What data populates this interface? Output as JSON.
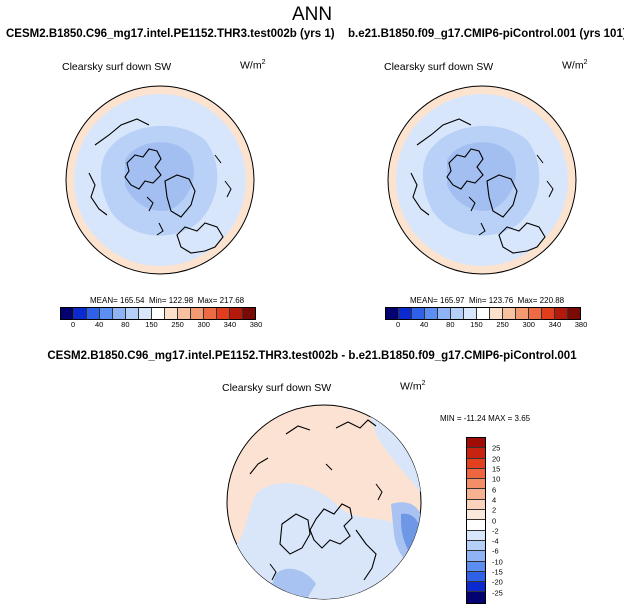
{
  "figure": {
    "title": "ANN",
    "panel_left": {
      "case": "CESM2.B1850.C96_mg17.intel.PE1152.THR3.test002b (yrs 1)",
      "variable": "Clearsky surf down SW",
      "unit_base": "W/m",
      "unit_exp": "2",
      "mean_text": "MEAN= 165.54",
      "min_text": "Min= 122.98",
      "max_text": "Max= 217.68"
    },
    "panel_right": {
      "case": "b.e21.B1850.f09_g17.CMIP6-piControl.001 (yrs 101)",
      "variable": "Clearsky surf down SW",
      "unit_base": "W/m",
      "unit_exp": "2",
      "mean_text": "MEAN= 165.97",
      "min_text": "Min= 123.76",
      "max_text": "Max= 220.88"
    },
    "panel_diff": {
      "case": "CESM2.B1850.C96_mg17.intel.PE1152.THR3.test002b - b.e21.B1850.f09_g17.CMIP6-piControl.001",
      "variable": "Clearsky surf down SW",
      "unit_base": "W/m",
      "unit_exp": "2",
      "minmax_text": "MIN = -11.24 MAX =   3.65"
    }
  },
  "colorbar_main": {
    "ticks": [
      "0",
      "40",
      "80",
      "150",
      "250",
      "300",
      "340",
      "380"
    ],
    "colors": [
      "#040270",
      "#0a2ad0",
      "#2e60e8",
      "#5b8ef0",
      "#8fb4f5",
      "#b4cff8",
      "#d8e6fb",
      "#ffffff",
      "#fbe0cc",
      "#f8c2a0",
      "#f49a72",
      "#ee6a44",
      "#e23c1e",
      "#b41a0c",
      "#7a0a04"
    ]
  },
  "colorbar_diff": {
    "ticks": [
      "25",
      "20",
      "15",
      "10",
      "6",
      "4",
      "2",
      "0",
      "-2",
      "-4",
      "-6",
      "-10",
      "-15",
      "-20",
      "-25"
    ],
    "colors": [
      "#a00c06",
      "#c82210",
      "#e2401e",
      "#ee6640",
      "#f48e68",
      "#f8b292",
      "#fbd2bc",
      "#fbe8dc",
      "#ffffff",
      "#d8e6fb",
      "#b4cff8",
      "#8fb4f5",
      "#5b8ef0",
      "#2e60e8",
      "#0a2ad0",
      "#040270"
    ]
  },
  "map_colors": {
    "outer_ring": "#fbe3d0",
    "field_light": "#d8e6fb",
    "field_mid": "#b9d1f6",
    "field_dark": "#a3bff1",
    "diff_pos": "#fbe2d2",
    "diff_neg1": "#d9e6fa",
    "diff_neg2": "#a8c3f2",
    "diff_neg3": "#6e98e6"
  }
}
